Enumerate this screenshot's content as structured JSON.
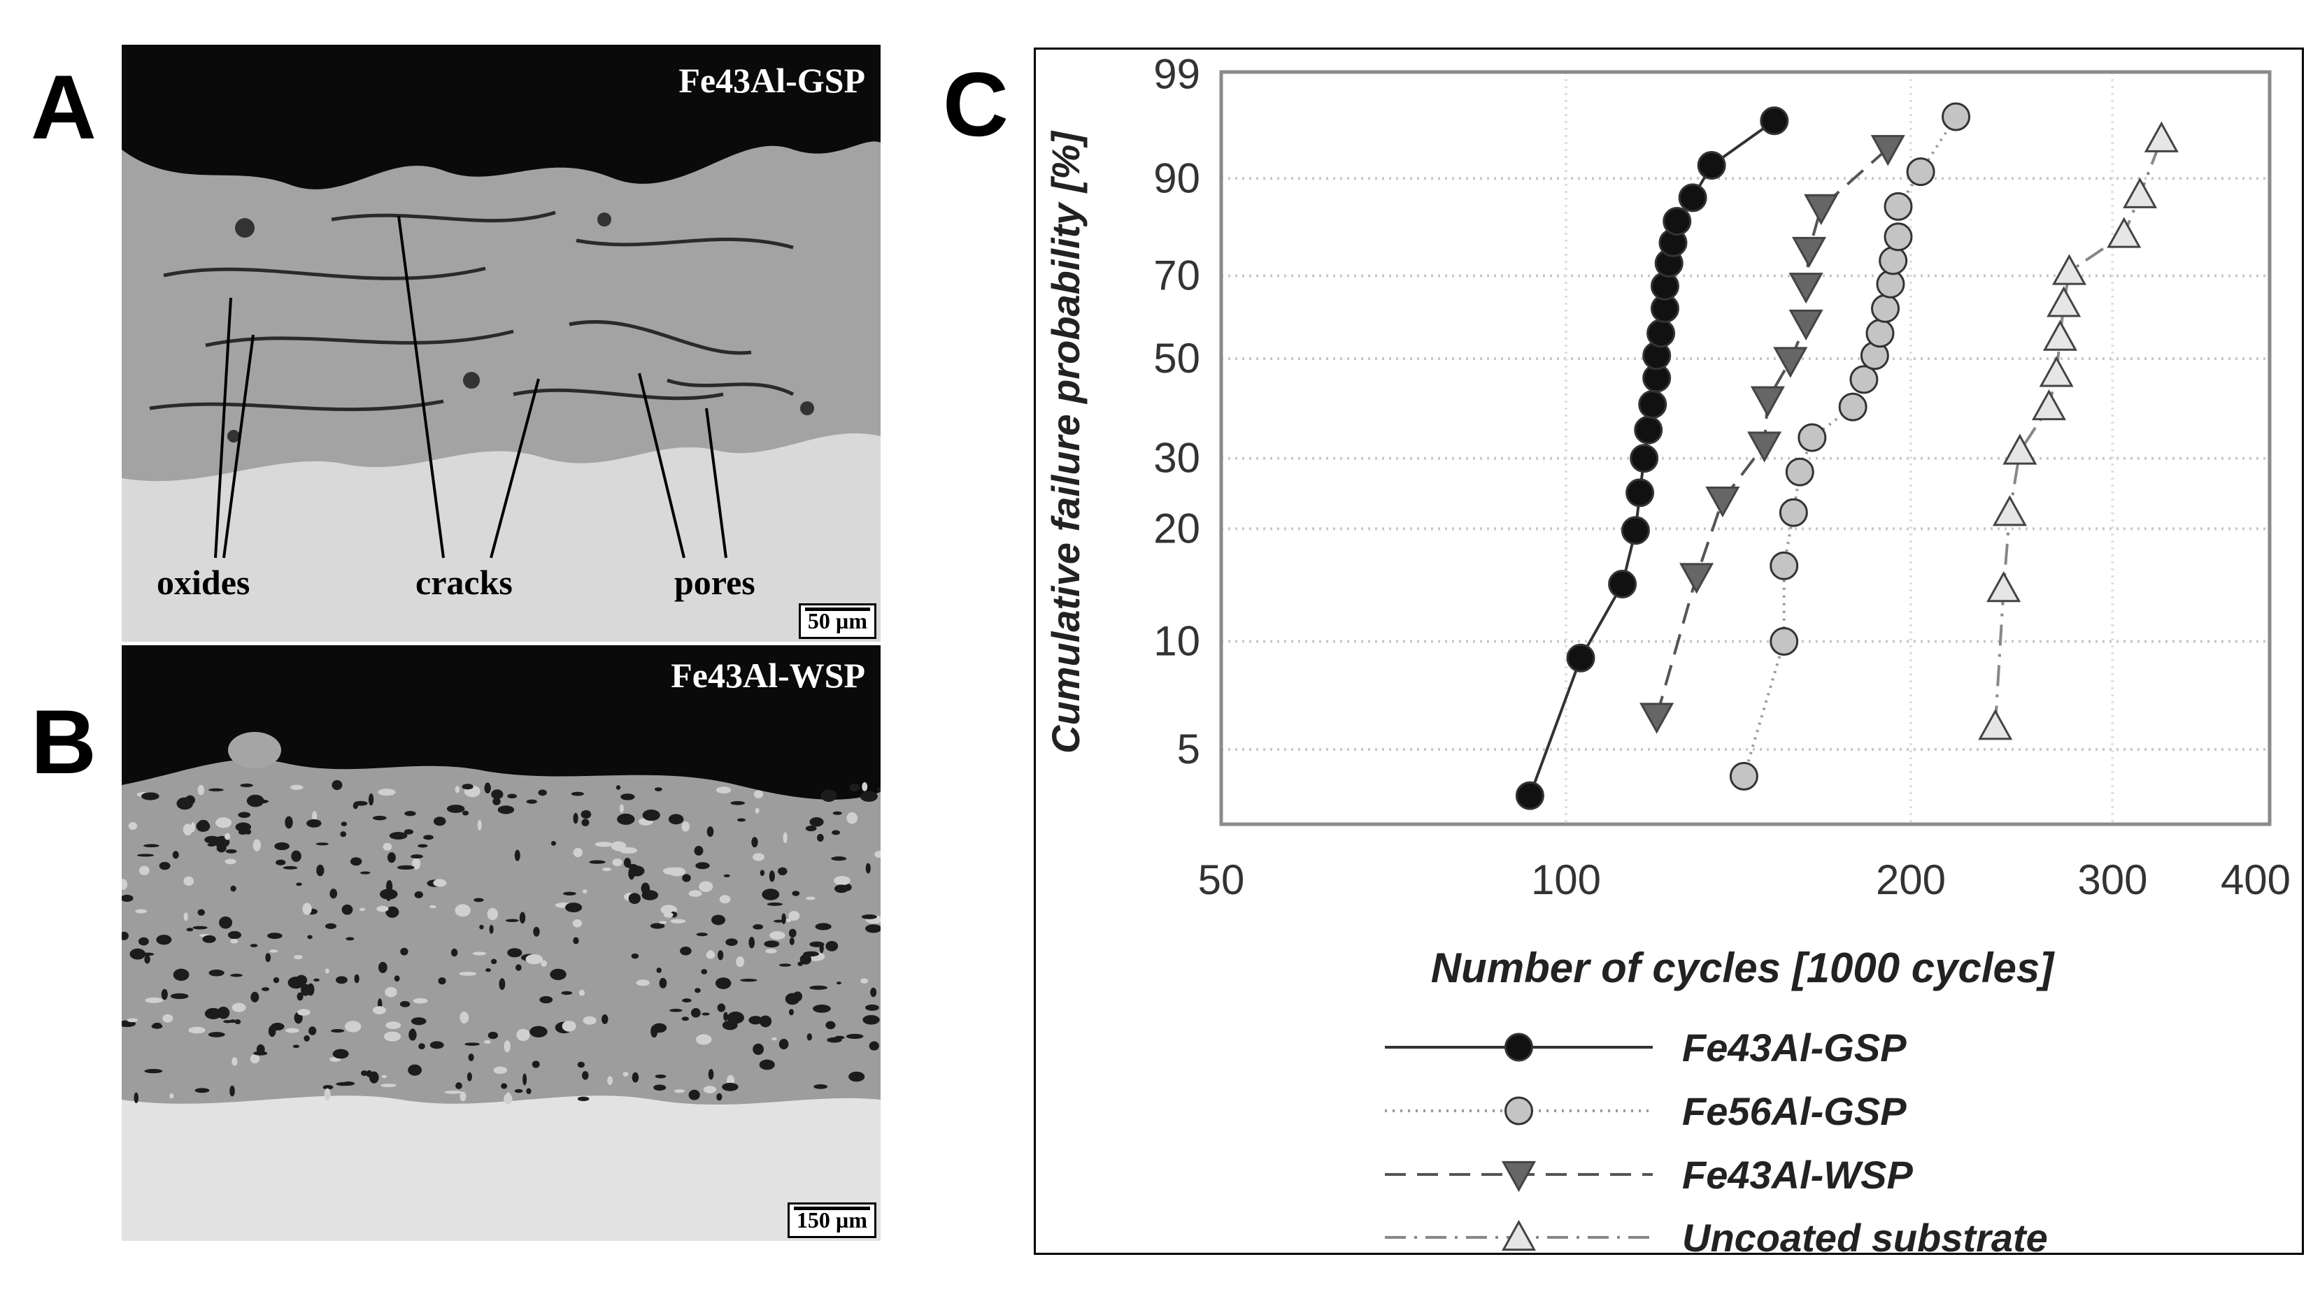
{
  "panels": {
    "A": {
      "letter": "A",
      "title": "Fe43Al-GSP",
      "labels": {
        "oxides": "oxides",
        "cracks": "cracks",
        "pores": "pores"
      },
      "scale_bar": "50 µm"
    },
    "B": {
      "letter": "B",
      "title": "Fe43Al-WSP",
      "scale_bar": "150 µm"
    },
    "C": {
      "letter": "C"
    }
  },
  "chart_data": {
    "type": "scatter",
    "title": "",
    "xlabel": "Number of cycles [1000 cycles]",
    "ylabel": "Cumulative failure probability [%]",
    "x_scale": "log",
    "y_scale": "weibull",
    "xlim": [
      50,
      415
    ],
    "ylim": [
      3.1,
      99.2
    ],
    "x_ticks": [
      50,
      100,
      200,
      300,
      400
    ],
    "y_ticks": [
      5,
      10,
      20,
      30,
      50,
      70,
      90,
      99
    ],
    "grid": true,
    "legend_position": "bottom",
    "series": [
      {
        "name": "Fe43Al-GSP",
        "marker": "circle",
        "fill": "#111111",
        "line": "solid",
        "line_color": "#333333",
        "x": [
          93,
          103,
          112,
          115,
          116,
          117,
          118,
          119,
          120,
          120,
          121,
          122,
          122,
          123,
          124,
          125,
          129,
          134,
          152
        ],
        "y": [
          3.7,
          9.0,
          14.3,
          19.8,
          24.7,
          30,
          35,
          40,
          45.6,
          50.7,
          56,
          62,
          67.5,
          73,
          77.7,
          82.3,
          86.8,
          91.9,
          96.6
        ]
      },
      {
        "name": "Fe56Al-GSP",
        "marker": "circle",
        "fill": "#c4c4c4",
        "line": "dotted",
        "line_color": "#999999",
        "x": [
          143,
          155,
          155,
          158,
          160,
          164,
          178,
          182,
          186,
          188,
          190,
          192,
          193,
          195,
          195,
          204,
          219
        ],
        "y": [
          4.2,
          10,
          16,
          22,
          27.8,
          33.6,
          39.5,
          45.3,
          50.7,
          56,
          62,
          68,
          73.6,
          79,
          85.2,
          91,
          96.9
        ]
      },
      {
        "name": "Fe43Al-WSP",
        "marker": "triangle-down",
        "fill": "#666666",
        "line": "dashed",
        "line_color": "#555555",
        "x": [
          120,
          130,
          137,
          149,
          150,
          157,
          162,
          162,
          163,
          167,
          191
        ],
        "y": [
          6.2,
          15,
          23.7,
          32.3,
          41,
          49.6,
          58.5,
          67.5,
          76,
          85,
          94
        ]
      },
      {
        "name": "Uncoated substrate",
        "marker": "triangle-up",
        "fill": "#e6e6e6",
        "line": "dashdot",
        "line_color": "#888888",
        "x": [
          237,
          241,
          244,
          249,
          264,
          268,
          270,
          272,
          275,
          307,
          317,
          331
        ],
        "y": [
          5.8,
          13.9,
          22,
          31.2,
          39.5,
          46.6,
          55,
          63.2,
          71,
          79.5,
          87.3,
          95
        ]
      }
    ]
  }
}
